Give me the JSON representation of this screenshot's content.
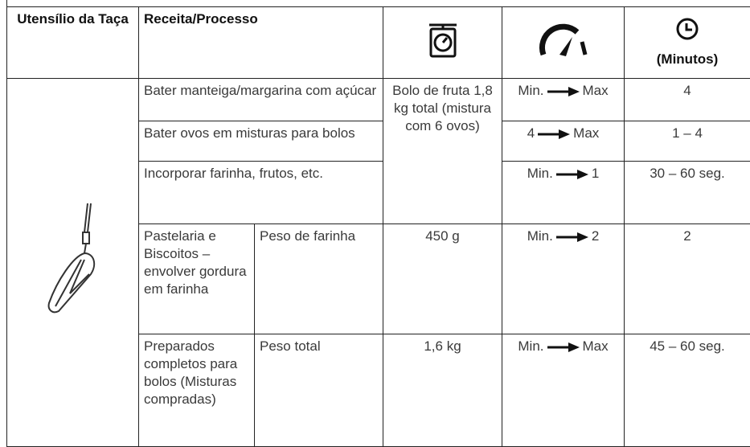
{
  "header": {
    "utensil": "Utensílio da Taça",
    "recipe": "Receita/Processo",
    "time_unit": "(Minutos)"
  },
  "shared_quantity": "Bolo de fruta 1,8 kg total (mistura com 6 ovos)",
  "rows": [
    {
      "process": "Bater manteiga/margarina com açúcar",
      "speed_from": "Min.",
      "speed_to": "Max",
      "time": "4"
    },
    {
      "process": "Bater ovos em misturas para bolos",
      "speed_from": "4",
      "speed_to": "Max",
      "time": "1 – 4"
    },
    {
      "process": "Incorporar farinha, frutos, etc.",
      "speed_from": "Min.",
      "speed_to": "1",
      "time": "30 – 60 seg."
    },
    {
      "process": "Pastelaria e Biscoitos – envolver gordura em farinha",
      "detail": "Peso de farinha",
      "quantity": "450 g",
      "speed_from": "Min.",
      "speed_to": "2",
      "time": "2"
    },
    {
      "process": "Preparados completos para bolos (Misturas compradas)",
      "detail": "Peso total",
      "quantity": "1,6 kg",
      "speed_from": "Min.",
      "speed_to": "Max",
      "time": "45 – 60 seg."
    }
  ]
}
